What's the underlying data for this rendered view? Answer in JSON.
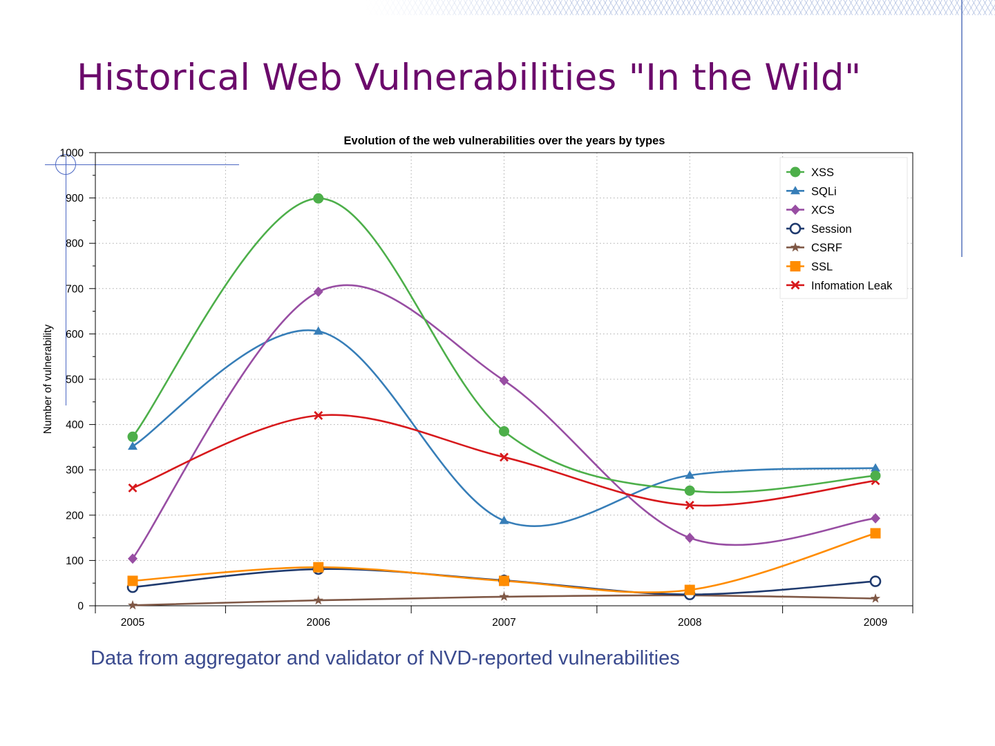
{
  "slide": {
    "title": "Historical Web Vulnerabilities \"In the Wild\"",
    "caption": "Data from aggregator and validator of  NVD-reported vulnerabilities"
  },
  "chart_data": {
    "type": "line",
    "title": "Evolution of the web vulnerabilities over the years by types",
    "xlabel": "",
    "ylabel": "Number of vulnerability",
    "x": [
      2005,
      2006,
      2007,
      2008,
      2009
    ],
    "x_tick_labels": [
      "2005",
      "2006",
      "2007",
      "2008",
      "2009"
    ],
    "ylim": [
      0,
      1000
    ],
    "y_ticks": [
      0,
      100,
      200,
      300,
      400,
      500,
      600,
      700,
      800,
      900,
      1000
    ],
    "grid": true,
    "smooth": true,
    "legend_position": "top-right",
    "series": [
      {
        "name": "XSS",
        "color": "#4daf4a",
        "marker": "circle",
        "values": [
          373,
          899,
          385,
          254,
          287
        ]
      },
      {
        "name": "SQLi",
        "color": "#377eb8",
        "marker": "triangle",
        "values": [
          352,
          606,
          188,
          288,
          304
        ]
      },
      {
        "name": "XCS",
        "color": "#984ea3",
        "marker": "diamond",
        "values": [
          104,
          693,
          497,
          150,
          193
        ]
      },
      {
        "name": "Session",
        "color": "#1f3a6e",
        "marker": "open-circle",
        "values": [
          41,
          81,
          56,
          25,
          54
        ]
      },
      {
        "name": "CSRF",
        "color": "#7f5846",
        "marker": "star",
        "values": [
          1,
          12,
          20,
          23,
          16
        ]
      },
      {
        "name": "SSL",
        "color": "#ff8c00",
        "marker": "square",
        "values": [
          55,
          85,
          55,
          35,
          160
        ]
      },
      {
        "name": "Infomation Leak",
        "color": "#d7191c",
        "marker": "x",
        "values": [
          260,
          420,
          328,
          222,
          276
        ]
      }
    ]
  }
}
